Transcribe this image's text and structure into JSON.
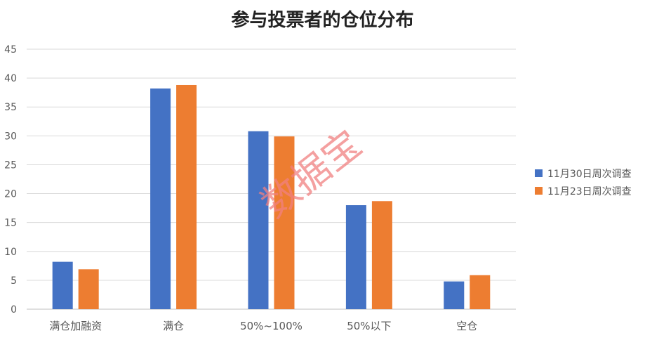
{
  "chart_data": {
    "type": "bar",
    "title": "参与投票者的仓位分布",
    "categories": [
      "满仓加融资",
      "满仓",
      "50%~100%",
      "50%以下",
      "空仓"
    ],
    "series": [
      {
        "name": "11月30日周次调查",
        "color": "#4472C4",
        "values": [
          8.2,
          38.2,
          30.8,
          18.0,
          4.8
        ]
      },
      {
        "name": "11月23日周次调查",
        "color": "#ED7D31",
        "values": [
          6.9,
          38.8,
          29.9,
          18.7,
          5.9
        ]
      }
    ],
    "ylim": [
      0,
      45
    ],
    "yticks": [
      0,
      5,
      10,
      15,
      20,
      25,
      30,
      35,
      40,
      45
    ],
    "grid": true,
    "legend_position": "right",
    "xlabel": "",
    "ylabel": ""
  },
  "watermark": "数据宝",
  "colors": {
    "gridline": "#d9d9d9",
    "axis": "#bfbfbf",
    "text": "#595959",
    "watermark": "#f08080"
  }
}
